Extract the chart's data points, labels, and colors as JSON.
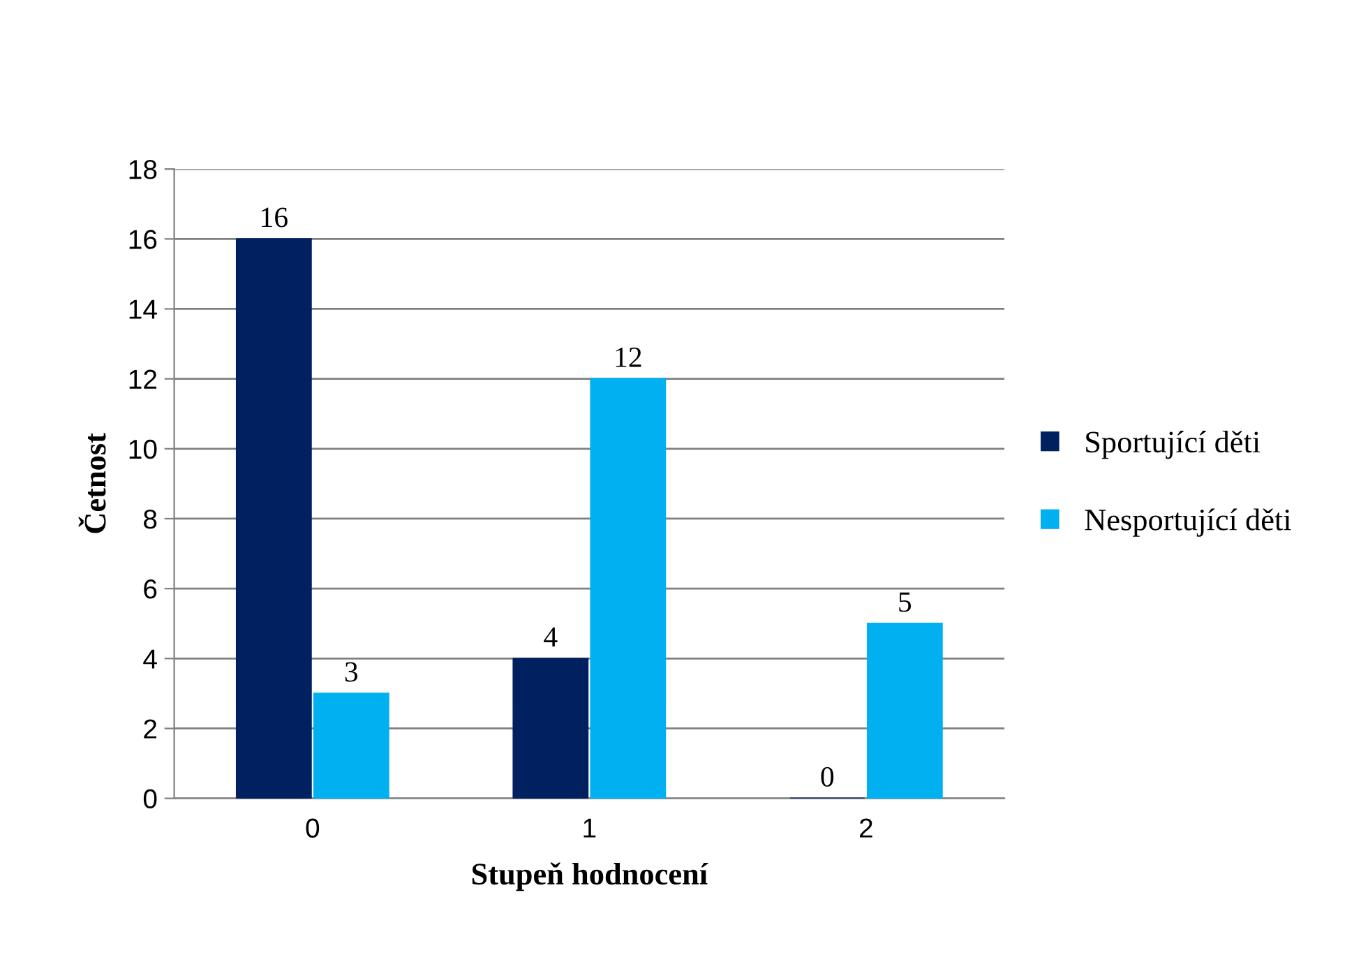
{
  "chart_data": {
    "type": "bar",
    "xlabel": "Stupeň hodnocení",
    "ylabel": "Četnost",
    "categories": [
      "0",
      "1",
      "2"
    ],
    "series": [
      {
        "name": "Sportující děti",
        "color": "#002060",
        "values": [
          16,
          4,
          0
        ]
      },
      {
        "name": "Nesportující děti",
        "color": "#00b0f0",
        "values": [
          3,
          12,
          5
        ]
      }
    ],
    "ylim": [
      0,
      18
    ],
    "yticks": [
      0,
      2,
      4,
      6,
      8,
      10,
      12,
      14,
      16,
      18
    ],
    "grid": "y",
    "legend": "right",
    "data_labels": true
  }
}
